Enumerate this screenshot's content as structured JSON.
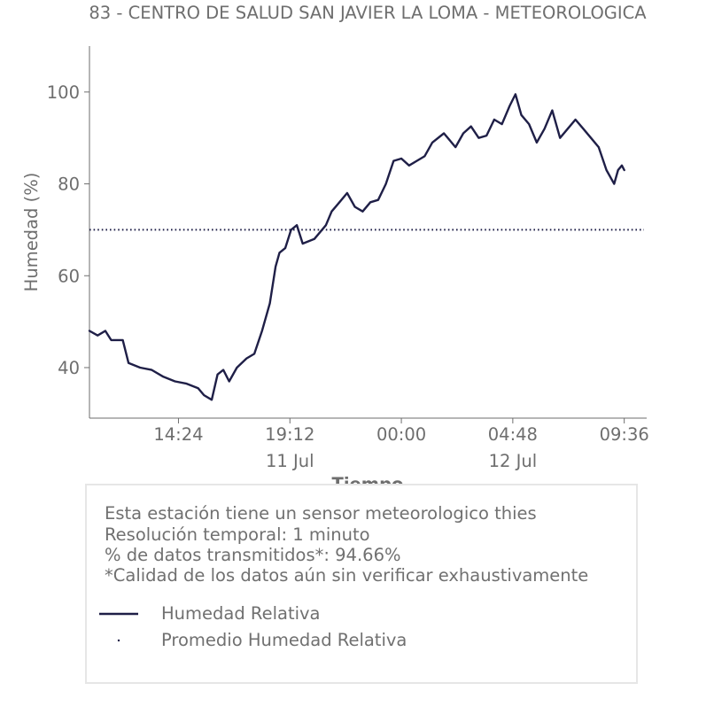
{
  "chart_data": {
    "type": "line",
    "title": "83 - CENTRO DE SALUD SAN JAVIER LA LOMA - METEOROLOGICA",
    "xlabel": "Tiempo",
    "ylabel": "Humedad (%)",
    "ylim": [
      29,
      110
    ],
    "yticks": [
      40,
      60,
      80,
      100
    ],
    "xticks": [
      {
        "t": "2023-07-11T14:24",
        "label": "14:24",
        "sublabel": ""
      },
      {
        "t": "2023-07-11T19:12",
        "label": "19:12",
        "sublabel": "11 Jul"
      },
      {
        "t": "2023-07-12T00:00",
        "label": "00:00",
        "sublabel": ""
      },
      {
        "t": "2023-07-12T04:48",
        "label": "04:48",
        "sublabel": "12 Jul"
      },
      {
        "t": "2023-07-12T09:36",
        "label": "09:36",
        "sublabel": ""
      }
    ],
    "xlim": [
      "2023-07-11T10:34",
      "2023-07-12T10:34"
    ],
    "line_color": "#1f1f47",
    "series": [
      {
        "name": "Humedad Relativa",
        "style": "line",
        "points": [
          [
            "2023-07-11T10:34",
            48
          ],
          [
            "2023-07-11T10:55",
            47
          ],
          [
            "2023-07-11T11:15",
            48
          ],
          [
            "2023-07-11T11:30",
            46
          ],
          [
            "2023-07-11T12:00",
            46
          ],
          [
            "2023-07-11T12:15",
            41
          ],
          [
            "2023-07-11T12:45",
            40
          ],
          [
            "2023-07-11T13:15",
            39.5
          ],
          [
            "2023-07-11T13:45",
            38
          ],
          [
            "2023-07-11T14:15",
            37
          ],
          [
            "2023-07-11T14:45",
            36.5
          ],
          [
            "2023-07-11T15:15",
            35.5
          ],
          [
            "2023-07-11T15:30",
            34
          ],
          [
            "2023-07-11T15:50",
            33
          ],
          [
            "2023-07-11T16:05",
            38.5
          ],
          [
            "2023-07-11T16:20",
            39.5
          ],
          [
            "2023-07-11T16:35",
            37
          ],
          [
            "2023-07-11T16:55",
            40
          ],
          [
            "2023-07-11T17:20",
            42
          ],
          [
            "2023-07-11T17:40",
            43
          ],
          [
            "2023-07-11T18:00",
            48
          ],
          [
            "2023-07-11T18:20",
            54
          ],
          [
            "2023-07-11T18:35",
            62
          ],
          [
            "2023-07-11T18:45",
            65
          ],
          [
            "2023-07-11T19:00",
            66
          ],
          [
            "2023-07-11T19:15",
            70
          ],
          [
            "2023-07-11T19:30",
            71
          ],
          [
            "2023-07-11T19:45",
            67
          ],
          [
            "2023-07-11T20:15",
            68
          ],
          [
            "2023-07-11T20:45",
            71
          ],
          [
            "2023-07-11T21:00",
            74
          ],
          [
            "2023-07-11T21:20",
            76
          ],
          [
            "2023-07-11T21:40",
            78
          ],
          [
            "2023-07-11T22:00",
            75
          ],
          [
            "2023-07-11T22:20",
            74
          ],
          [
            "2023-07-11T22:40",
            76
          ],
          [
            "2023-07-11T23:00",
            76.5
          ],
          [
            "2023-07-11T23:20",
            80
          ],
          [
            "2023-07-11T23:40",
            85
          ],
          [
            "2023-07-12T00:00",
            85.5
          ],
          [
            "2023-07-12T00:20",
            84
          ],
          [
            "2023-07-12T00:40",
            85
          ],
          [
            "2023-07-12T01:00",
            86
          ],
          [
            "2023-07-12T01:20",
            89
          ],
          [
            "2023-07-12T01:50",
            91
          ],
          [
            "2023-07-12T02:20",
            88
          ],
          [
            "2023-07-12T02:40",
            91
          ],
          [
            "2023-07-12T03:00",
            92.5
          ],
          [
            "2023-07-12T03:20",
            90
          ],
          [
            "2023-07-12T03:40",
            90.5
          ],
          [
            "2023-07-12T04:00",
            94
          ],
          [
            "2023-07-12T04:20",
            93
          ],
          [
            "2023-07-12T04:40",
            97
          ],
          [
            "2023-07-12T04:55",
            99.5
          ],
          [
            "2023-07-12T05:10",
            95
          ],
          [
            "2023-07-12T05:30",
            93
          ],
          [
            "2023-07-12T05:50",
            89
          ],
          [
            "2023-07-12T06:10",
            92
          ],
          [
            "2023-07-12T06:30",
            96
          ],
          [
            "2023-07-12T06:50",
            90
          ],
          [
            "2023-07-12T07:10",
            92
          ],
          [
            "2023-07-12T07:30",
            94
          ],
          [
            "2023-07-12T07:50",
            92
          ],
          [
            "2023-07-12T08:10",
            90
          ],
          [
            "2023-07-12T08:30",
            88
          ],
          [
            "2023-07-12T08:50",
            83
          ],
          [
            "2023-07-12T09:10",
            80
          ],
          [
            "2023-07-12T09:20",
            83
          ],
          [
            "2023-07-12T09:30",
            84
          ],
          [
            "2023-07-12T09:36",
            83
          ]
        ]
      },
      {
        "name": "Promedio Humedad Relativa",
        "style": "dotted",
        "value": 70
      }
    ]
  },
  "info": {
    "lines": [
      "Esta estación tiene un sensor meteorologico thies",
      "Resolución temporal: 1 minuto",
      "% de datos transmitidos*: 94.66%",
      "*Calidad de los datos aún sin verificar exhaustivamente"
    ],
    "legend": [
      "Humedad Relativa",
      "Promedio Humedad Relativa"
    ]
  }
}
